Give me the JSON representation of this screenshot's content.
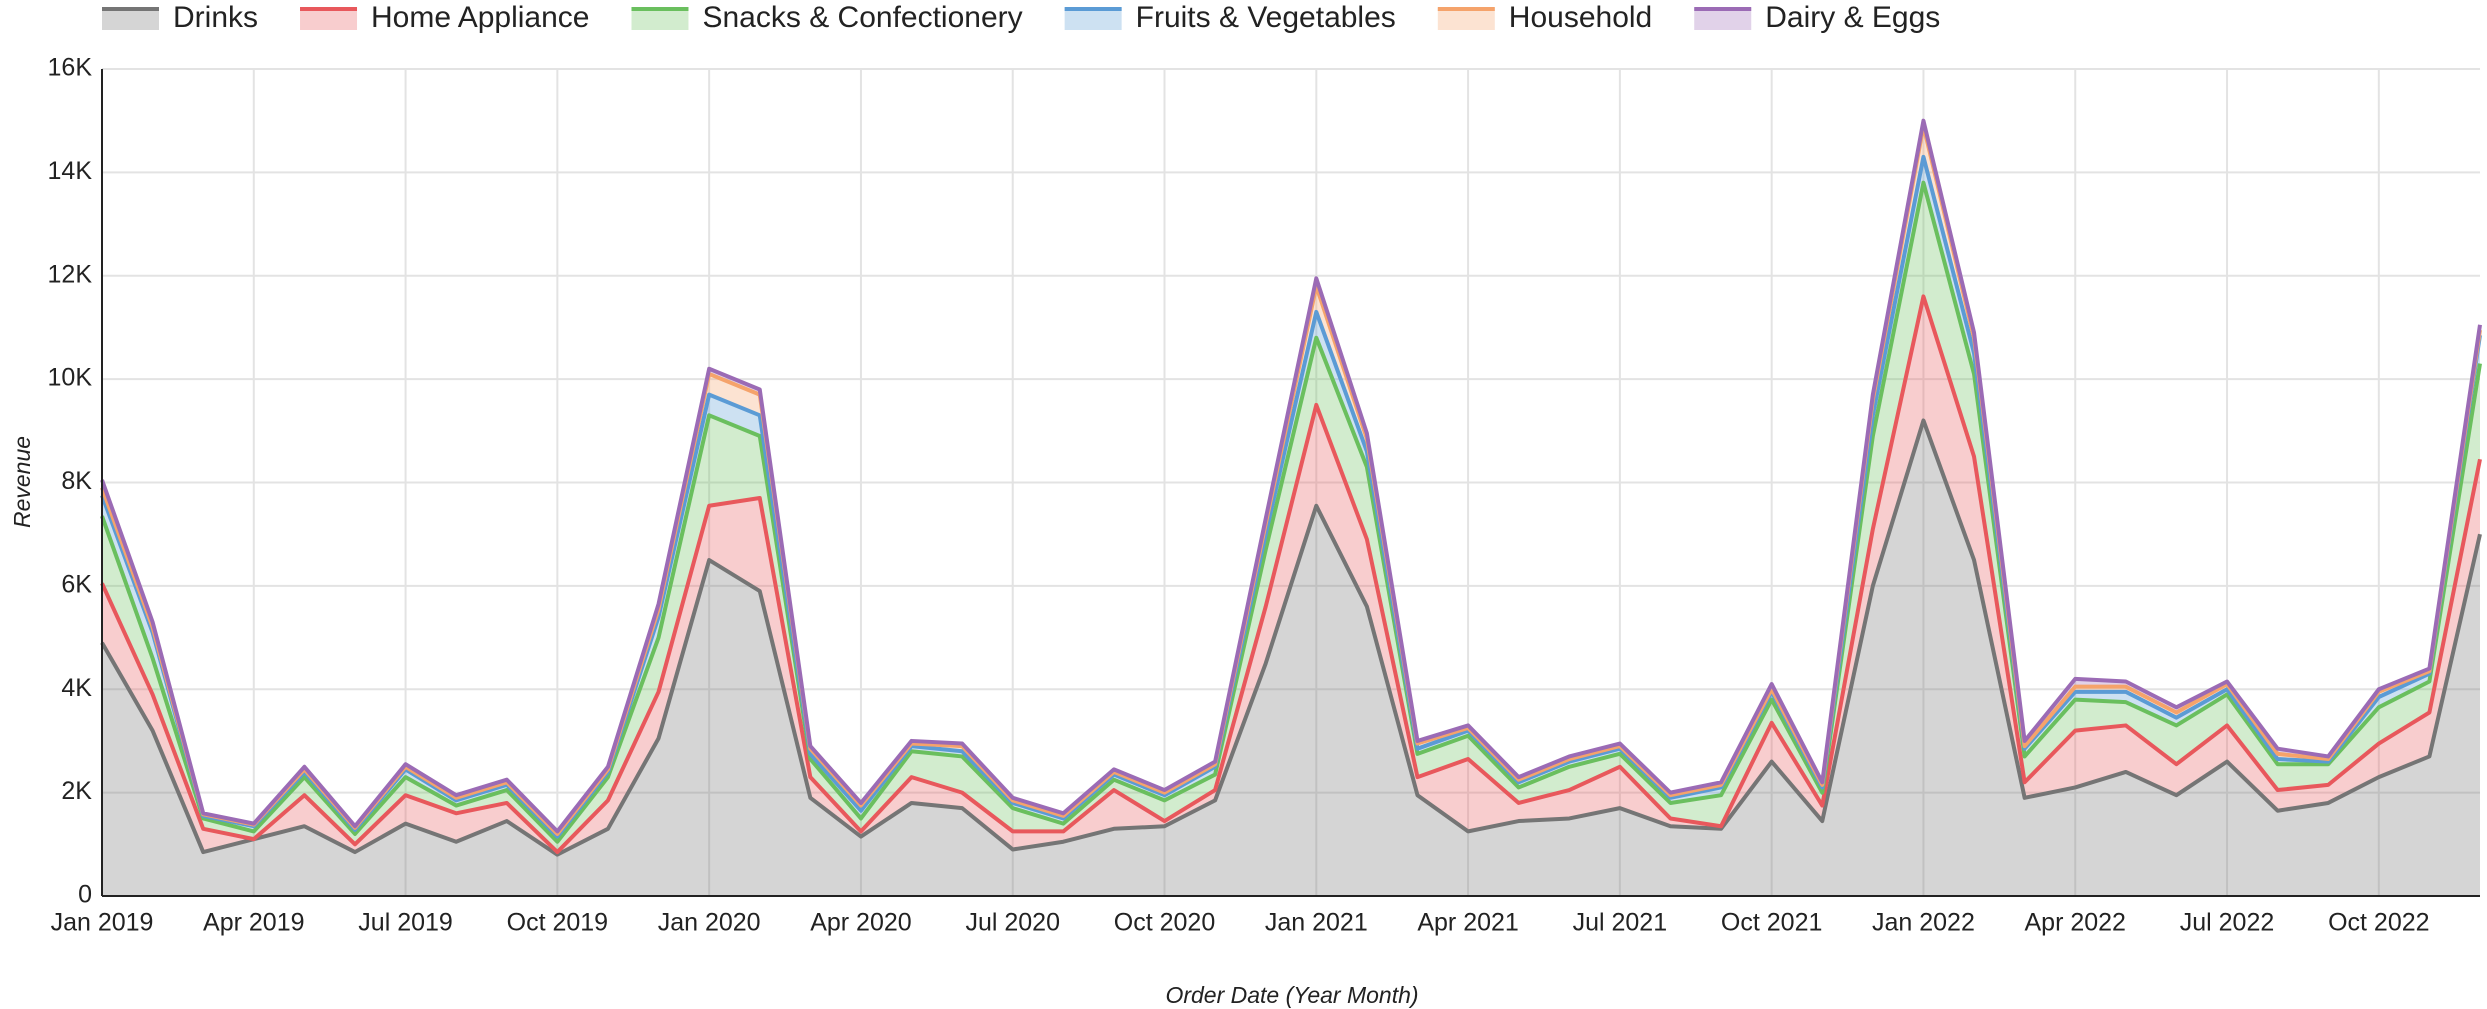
{
  "chart_data": {
    "type": "stacked-area",
    "x_label": "Order Date (Year Month)",
    "y_label": "Revenue",
    "categories": [
      "Jan 2019",
      null,
      null,
      "Apr 2019",
      null,
      null,
      "Jul 2019",
      null,
      null,
      "Oct 2019",
      null,
      null,
      "Jan 2020",
      null,
      null,
      "Apr 2020",
      null,
      null,
      "Jul 2020",
      null,
      null,
      "Oct 2020",
      null,
      null,
      "Jan 2021",
      null,
      null,
      "Apr 2021",
      null,
      null,
      "Jul 2021",
      null,
      null,
      "Oct 2021",
      null,
      null,
      "Jan 2022",
      null,
      null,
      "Apr 2022",
      null,
      null,
      "Jul 2022",
      null,
      null,
      "Oct 2022",
      null,
      null
    ],
    "series": [
      {
        "name": "Drinks",
        "color": "#757575",
        "values": [
          4900,
          3200,
          850,
          1100,
          1350,
          850,
          1400,
          1050,
          1450,
          800,
          1300,
          3050,
          6500,
          5900,
          1900,
          1150,
          1800,
          1700,
          900,
          1050,
          1300,
          1350,
          1850,
          4500,
          7550,
          5600,
          1950,
          1250,
          1450,
          1500,
          1700,
          1350,
          1300,
          2600,
          1450,
          6000,
          9200,
          6500,
          1900,
          2100,
          2400,
          1950,
          2600,
          1650,
          1800,
          2300,
          2700,
          7000
        ]
      },
      {
        "name": "Home Appliance",
        "color": "#e8585c",
        "values": [
          1150,
          700,
          450,
          0,
          600,
          150,
          550,
          550,
          350,
          50,
          550,
          900,
          1050,
          1800,
          400,
          100,
          500,
          300,
          350,
          200,
          750,
          100,
          200,
          1100,
          1950,
          1300,
          350,
          1400,
          350,
          550,
          800,
          150,
          50,
          750,
          300,
          1100,
          2400,
          2000,
          300,
          1100,
          900,
          600,
          700,
          400,
          350,
          650,
          850,
          1450
        ]
      },
      {
        "name": "Snacks & Confectionery",
        "color": "#6abf5e",
        "values": [
          1300,
          700,
          200,
          150,
          350,
          200,
          350,
          150,
          250,
          200,
          450,
          1050,
          1750,
          1200,
          350,
          250,
          500,
          700,
          450,
          150,
          200,
          400,
          300,
          1100,
          1300,
          1400,
          450,
          450,
          300,
          450,
          250,
          300,
          600,
          450,
          250,
          1800,
          2200,
          1600,
          500,
          600,
          450,
          750,
          600,
          500,
          400,
          700,
          600,
          1850
        ]
      },
      {
        "name": "Fruits & Vegetables",
        "color": "#5b9bd5",
        "values": [
          400,
          500,
          50,
          100,
          100,
          80,
          150,
          100,
          100,
          100,
          100,
          400,
          400,
          400,
          100,
          150,
          100,
          100,
          100,
          100,
          100,
          100,
          150,
          300,
          500,
          300,
          100,
          100,
          100,
          100,
          100,
          100,
          150,
          150,
          100,
          400,
          500,
          400,
          150,
          150,
          200,
          150,
          100,
          100,
          50,
          200,
          150,
          550
        ]
      },
      {
        "name": "Household",
        "color": "#f5a36b",
        "values": [
          150,
          100,
          30,
          30,
          50,
          40,
          50,
          50,
          50,
          50,
          50,
          150,
          400,
          400,
          100,
          100,
          50,
          100,
          50,
          50,
          50,
          50,
          50,
          200,
          500,
          250,
          100,
          50,
          50,
          50,
          50,
          50,
          50,
          50,
          50,
          300,
          600,
          300,
          50,
          100,
          100,
          100,
          100,
          100,
          50,
          100,
          50,
          100
        ]
      },
      {
        "name": "Dairy & Eggs",
        "color": "#9b6bb5",
        "values": [
          150,
          100,
          20,
          20,
          50,
          30,
          50,
          50,
          50,
          50,
          50,
          100,
          100,
          100,
          50,
          50,
          50,
          50,
          50,
          50,
          50,
          50,
          50,
          100,
          150,
          100,
          50,
          50,
          50,
          50,
          50,
          50,
          50,
          100,
          50,
          100,
          100,
          100,
          100,
          150,
          100,
          100,
          50,
          100,
          50,
          50,
          50,
          100
        ]
      }
    ],
    "ylim": [
      0,
      16000
    ],
    "yticks": [
      0,
      {
        "value": 2000,
        "label": "2K"
      },
      {
        "value": 4000,
        "label": "4K"
      },
      {
        "value": 6000,
        "label": "6K"
      },
      {
        "value": 8000,
        "label": "8K"
      },
      {
        "value": 10000,
        "label": "10K"
      },
      {
        "value": 12000,
        "label": "12K"
      },
      {
        "value": 14000,
        "label": "14K"
      },
      {
        "value": 16000,
        "label": "16K"
      }
    ],
    "grid": true,
    "legend": "top"
  }
}
